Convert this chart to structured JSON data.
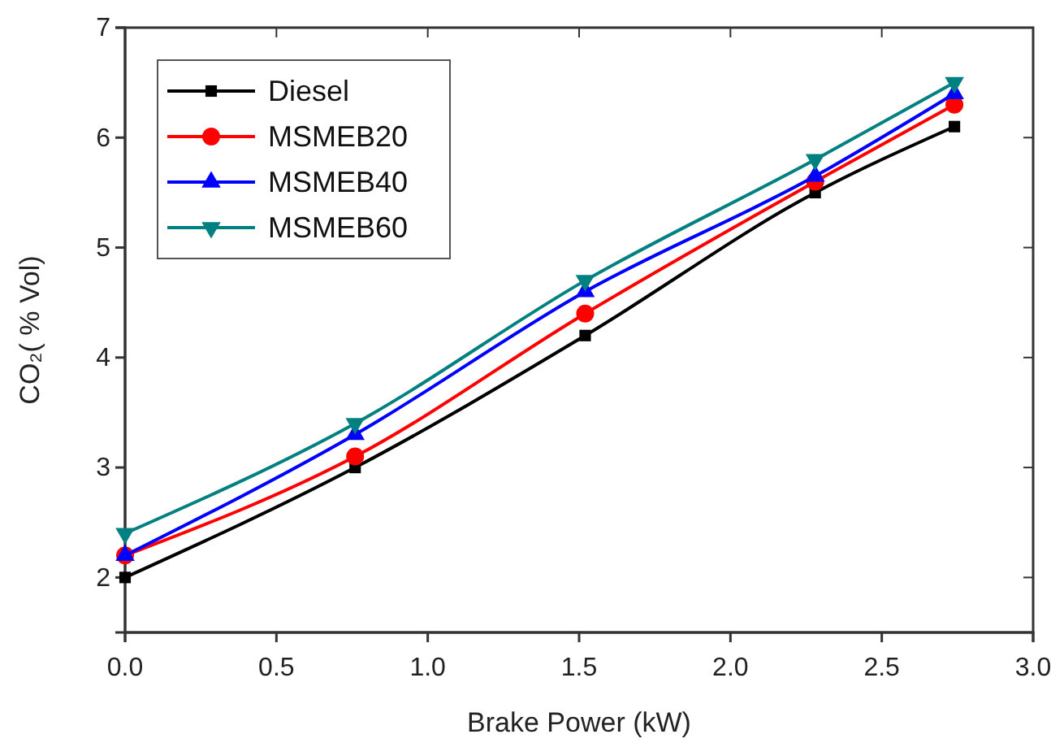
{
  "chart_data": {
    "type": "line",
    "xlabel": "Brake Power (kW)",
    "ylabel": "CO₂( % Vol)",
    "xlim": [
      0,
      3
    ],
    "xticks": [
      {
        "value": 0,
        "label": "0.0"
      },
      {
        "value": 0.5,
        "label": "0.5"
      },
      {
        "value": 1,
        "label": "1.0"
      },
      {
        "value": 1.5,
        "label": "1.5"
      },
      {
        "value": 2,
        "label": "2.0"
      },
      {
        "value": 2.5,
        "label": "2.5"
      },
      {
        "value": 3,
        "label": "3.0"
      }
    ],
    "ylim": [
      1.5,
      7
    ],
    "yticks": [
      2,
      3,
      4,
      5,
      6,
      7
    ],
    "x": [
      0,
      0.76,
      1.52,
      2.28,
      2.74
    ],
    "series": [
      {
        "name": "Diesel",
        "color": "#000000",
        "marker": "square",
        "values": [
          2.0,
          3.0,
          4.2,
          5.5,
          6.1
        ]
      },
      {
        "name": "MSMEB20",
        "color": "#ff0000",
        "marker": "circle",
        "values": [
          2.2,
          3.1,
          4.4,
          5.6,
          6.3
        ]
      },
      {
        "name": "MSMEB40",
        "color": "#0000ff",
        "marker": "triangle",
        "values": [
          2.2,
          3.3,
          4.6,
          5.65,
          6.4
        ]
      },
      {
        "name": "MSMEB60",
        "color": "#008080",
        "marker": "triangle-down",
        "values": [
          2.4,
          3.4,
          4.7,
          5.8,
          6.5
        ]
      }
    ],
    "legend": "top left",
    "grid": false,
    "line_style": "solid"
  }
}
